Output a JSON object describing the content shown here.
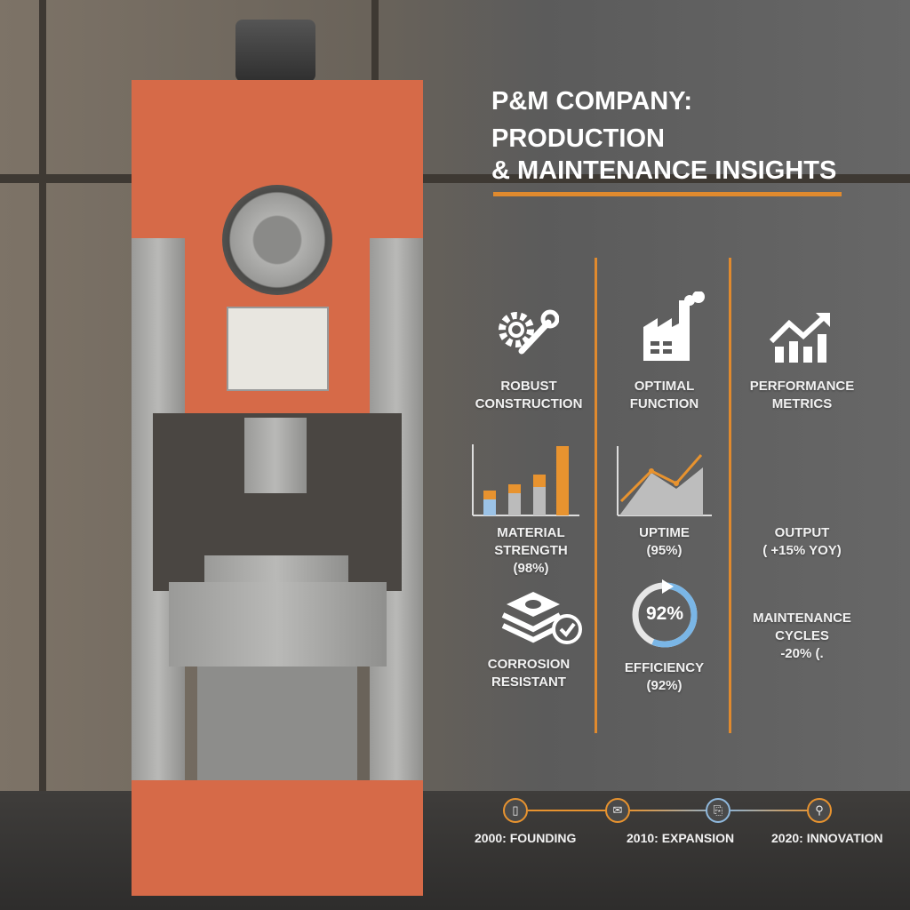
{
  "title": {
    "line1": "P&M COMPANY:",
    "line2": "PRODUCTION",
    "line3": "& MAINTENANCE INSIGHTS"
  },
  "accent_color": "#e08a2e",
  "columns": [
    {
      "icon": "gear-wrench-icon",
      "label1": "ROBUST",
      "label2": "CONSTRUCTION",
      "metric1": "MATERIAL STRENGTH",
      "metric1_value": "(98%)",
      "icon2": "stacked-plates-check-icon",
      "feature1": "CORROSION",
      "feature2": "RESISTANT"
    },
    {
      "icon": "factory-icon",
      "label1": "OPTIMAL",
      "label2": "FUNCTION",
      "metric1": "UPTIME",
      "metric1_value": "(95%)",
      "gauge_value": "92%",
      "gauge_fraction": 0.92,
      "feature1": "EFFICIENCY",
      "feature2": "(92%)"
    },
    {
      "icon": "trend-chart-icon",
      "label1": "PERFORMANCE",
      "label2": "METRICS",
      "metric1": "OUTPUT",
      "metric1_value": "( +15% YOY)",
      "feature1": "MAINTENANCE",
      "feature2": "CYCLES",
      "feature3": "-20% (."
    }
  ],
  "timeline": [
    {
      "label": "2000: FOUNDING",
      "icon": "device-icon"
    },
    {
      "label": "2010:  EXPANSION",
      "icon": "envelope-icon"
    },
    {
      "label": "",
      "icon": "document-icon"
    },
    {
      "label": "2020: INNOVATION",
      "icon": "search-icon"
    }
  ]
}
